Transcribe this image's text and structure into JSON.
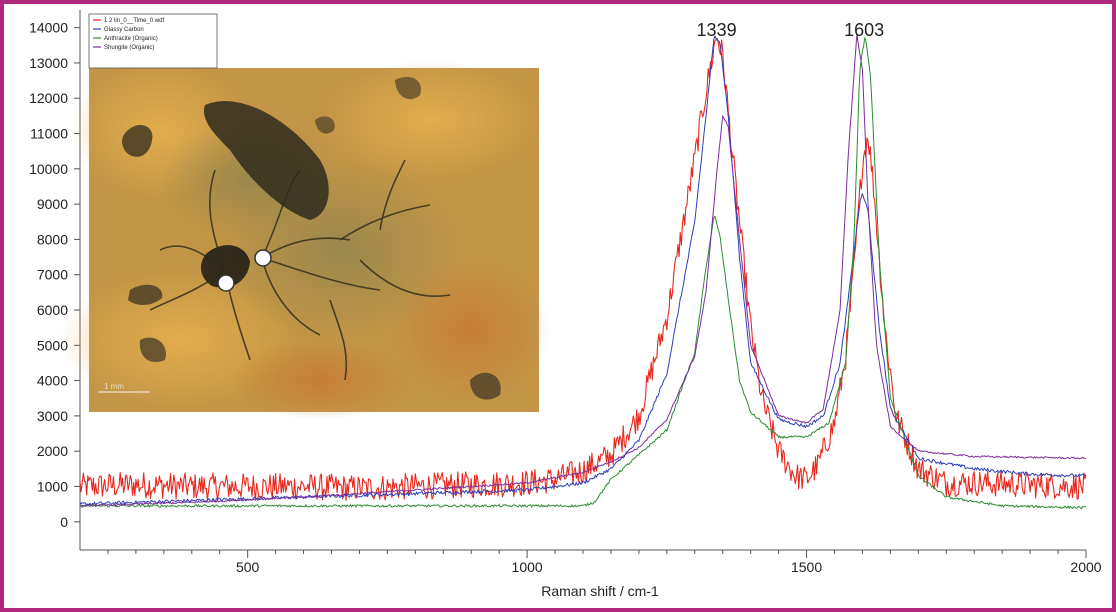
{
  "chart_data": {
    "type": "line",
    "title": "",
    "xlabel": "Raman shift / cm-1",
    "ylabel": "",
    "xlim": [
      200,
      2000
    ],
    "ylim": [
      -800,
      14500
    ],
    "xticks": [
      500,
      1000,
      1500,
      2000
    ],
    "yticks": [
      0,
      1000,
      2000,
      3000,
      4000,
      5000,
      6000,
      7000,
      8000,
      9000,
      10000,
      11000,
      12000,
      13000,
      14000
    ],
    "grid": false,
    "legend_position": "top-left",
    "annotations": [
      {
        "text": "1339",
        "x": 1339,
        "y": 14000
      },
      {
        "text": "1603",
        "x": 1603,
        "y": 14000
      }
    ],
    "series": [
      {
        "name": "1 2 lin_0__Time_0.wdf",
        "color": "#e8271e",
        "noise": 380,
        "x": [
          200,
          300,
          400,
          500,
          600,
          700,
          800,
          900,
          1000,
          1050,
          1100,
          1150,
          1200,
          1250,
          1280,
          1300,
          1320,
          1339,
          1350,
          1370,
          1400,
          1420,
          1450,
          1480,
          1500,
          1520,
          1550,
          1570,
          1585,
          1600,
          1610,
          1620,
          1640,
          1660,
          1700,
          1750,
          1800,
          1900,
          2000
        ],
        "y": [
          1000,
          1050,
          1000,
          1000,
          1000,
          950,
          1000,
          1050,
          1100,
          1200,
          1450,
          1900,
          3000,
          5800,
          8500,
          10300,
          12200,
          13800,
          13200,
          10000,
          5500,
          3500,
          2000,
          1300,
          1200,
          1600,
          2800,
          4700,
          7200,
          10200,
          11000,
          9500,
          5500,
          3000,
          1500,
          1100,
          1100,
          1050,
          1000
        ]
      },
      {
        "name": "Glassy Carbon",
        "color": "#2e3fb8",
        "noise": 50,
        "x": [
          200,
          400,
          600,
          800,
          1000,
          1100,
          1150,
          1200,
          1250,
          1300,
          1320,
          1335,
          1345,
          1360,
          1380,
          1400,
          1450,
          1500,
          1530,
          1560,
          1580,
          1595,
          1600,
          1610,
          1630,
          1650,
          1700,
          1800,
          1900,
          2000
        ],
        "y": [
          500,
          600,
          700,
          800,
          900,
          1100,
          1500,
          2300,
          4200,
          8500,
          11500,
          13800,
          13600,
          11500,
          7500,
          4500,
          2900,
          2700,
          3000,
          4500,
          7000,
          9000,
          9300,
          8800,
          5500,
          3200,
          1800,
          1500,
          1350,
          1300
        ]
      },
      {
        "name": "Anthracite (Organic)",
        "color": "#2e8a34",
        "noise": 35,
        "x": [
          200,
          400,
          600,
          800,
          1000,
          1100,
          1120,
          1150,
          1200,
          1250,
          1300,
          1320,
          1335,
          1345,
          1360,
          1380,
          1400,
          1450,
          1500,
          1540,
          1570,
          1585,
          1595,
          1605,
          1615,
          1630,
          1650,
          1700,
          1750,
          1850,
          2000
        ],
        "y": [
          450,
          450,
          450,
          450,
          450,
          450,
          550,
          1200,
          1900,
          2600,
          4800,
          7200,
          8700,
          8100,
          6300,
          4000,
          3100,
          2400,
          2400,
          2800,
          4500,
          8000,
          12800,
          13800,
          12500,
          7500,
          3500,
          1300,
          700,
          450,
          400
        ]
      },
      {
        "name": "Shungite (Organic)",
        "color": "#7d2d9c",
        "noise": 25,
        "x": [
          200,
          400,
          600,
          800,
          1000,
          1100,
          1150,
          1200,
          1250,
          1300,
          1320,
          1340,
          1350,
          1360,
          1380,
          1400,
          1450,
          1500,
          1530,
          1560,
          1575,
          1590,
          1600,
          1610,
          1625,
          1650,
          1700,
          1800,
          2000
        ],
        "y": [
          450,
          550,
          700,
          900,
          1100,
          1400,
          1700,
          2100,
          2900,
          4700,
          6500,
          10000,
          11500,
          11200,
          8000,
          5000,
          3000,
          2800,
          3200,
          6000,
          10500,
          13800,
          12800,
          9000,
          5000,
          2700,
          2000,
          1850,
          1800
        ]
      }
    ]
  },
  "inset": {
    "scale_label": "1 mm"
  }
}
